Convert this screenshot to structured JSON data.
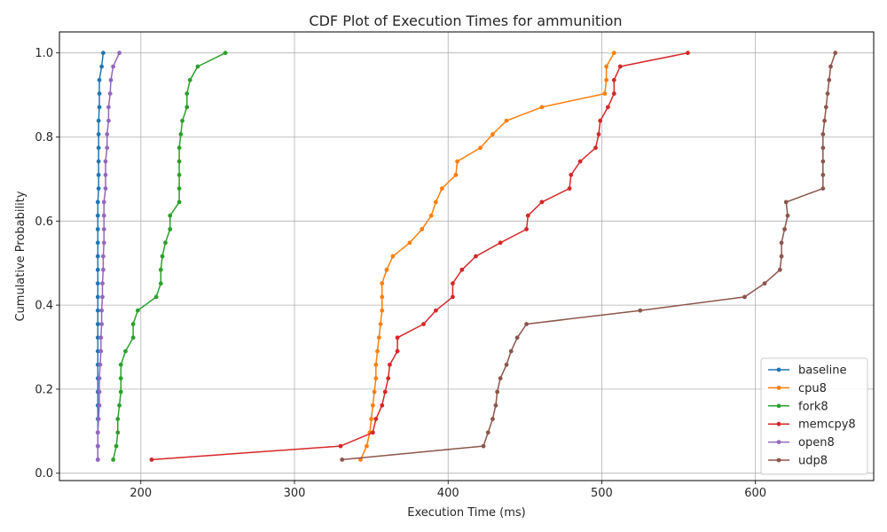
{
  "chart_data": {
    "type": "line",
    "title": "CDF Plot of Execution Times for ammunition",
    "xlabel": "Execution Time (ms)",
    "ylabel": "Cumulative Probability",
    "xlim": [
      147,
      677
    ],
    "ylim": [
      -0.0175,
      1.05
    ],
    "xticks": [
      200,
      300,
      400,
      500,
      600
    ],
    "xtick_labels": [
      "200",
      "300",
      "400",
      "500",
      "600"
    ],
    "yticks": [
      0.0,
      0.2,
      0.4,
      0.6,
      0.8,
      1.0
    ],
    "ytick_labels": [
      "0.0",
      "0.2",
      "0.4",
      "0.6",
      "0.8",
      "1.0"
    ],
    "grid": true,
    "legend_position": "lower right",
    "y": [
      0.0323,
      0.0645,
      0.0968,
      0.129,
      0.1613,
      0.1935,
      0.2258,
      0.2581,
      0.2903,
      0.3226,
      0.3548,
      0.3871,
      0.4194,
      0.4516,
      0.4839,
      0.5161,
      0.5484,
      0.5806,
      0.6129,
      0.6452,
      0.6774,
      0.7097,
      0.7419,
      0.7742,
      0.8065,
      0.8387,
      0.871,
      0.9032,
      0.9355,
      0.9677,
      1.0
    ],
    "series": [
      {
        "name": "baseline",
        "color": "#1f77b4",
        "x": [
          172,
          172,
          172,
          172,
          172,
          172,
          172,
          172,
          172,
          172,
          172,
          172,
          172,
          172,
          172,
          172,
          172,
          172,
          172,
          172,
          172.5,
          172.5,
          172.5,
          172.5,
          172.5,
          172.5,
          173,
          173,
          173,
          174.5,
          175.5
        ]
      },
      {
        "name": "cpu8",
        "color": "#ff7f0e",
        "x": [
          343,
          347,
          349,
          350,
          351,
          352,
          353,
          353,
          354,
          355,
          356,
          357,
          357,
          357,
          360,
          364,
          375,
          383,
          389,
          392,
          396,
          405,
          406,
          421,
          429,
          438,
          461,
          502,
          503,
          503,
          508
        ]
      },
      {
        "name": "fork8",
        "color": "#2ca02c",
        "x": [
          182,
          184,
          185,
          185,
          186,
          187,
          187,
          187,
          190,
          195,
          195,
          198,
          210,
          213,
          213,
          214,
          216,
          219,
          219,
          225,
          225,
          225,
          225,
          225,
          226,
          227,
          230,
          230,
          232,
          237,
          255
        ]
      },
      {
        "name": "memcpy8",
        "color": "#d62728",
        "x": [
          207,
          330,
          351,
          353,
          357,
          359,
          361,
          362,
          367,
          367,
          384,
          392,
          403,
          403,
          409,
          418,
          434,
          451,
          452,
          461,
          479,
          480,
          486,
          496,
          498,
          499,
          504,
          508,
          508,
          512,
          556
        ]
      },
      {
        "name": "open8",
        "color": "#9467bd",
        "x": [
          172,
          172,
          172,
          172.5,
          173,
          173,
          173,
          173.5,
          174,
          174,
          174.5,
          174.5,
          175,
          175,
          175.5,
          175.5,
          176,
          176,
          176,
          176,
          177,
          177,
          177,
          178,
          178,
          179,
          179,
          180,
          180.5,
          182,
          186
        ]
      },
      {
        "name": "udp8",
        "color": "#8c564b",
        "x": [
          331,
          423,
          426,
          429,
          431,
          432,
          434,
          438,
          441,
          445,
          451,
          525,
          593,
          606,
          616,
          617,
          617,
          619,
          621,
          620,
          644,
          644,
          644,
          644,
          644,
          645,
          646,
          647,
          648,
          649,
          652
        ]
      }
    ]
  }
}
